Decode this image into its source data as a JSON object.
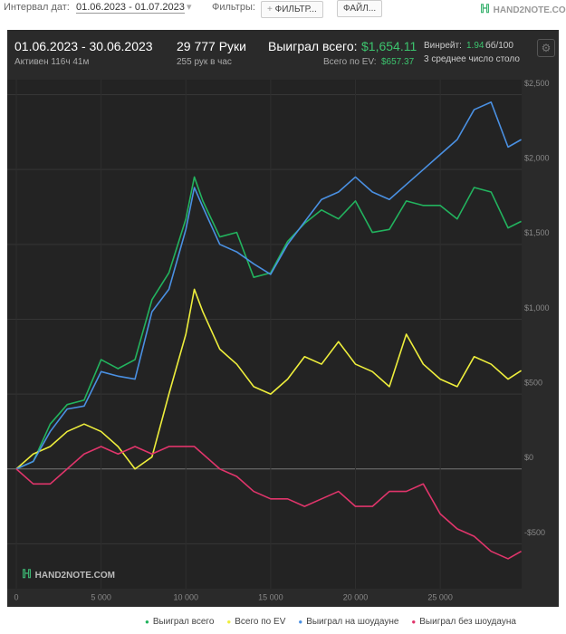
{
  "top_bar": {
    "date_label": "Интервал дат:",
    "date_range": "01.06.2023 - 01.07.2023",
    "filters_label": "Фильтры:",
    "filter_button": "ФИЛЬТР...",
    "file_button": "ФАЙЛ...",
    "logo": "HAND2NOTE.COM"
  },
  "summary": {
    "period": "01.06.2023 - 30.06.2023",
    "active": "Активен 116ч 41м",
    "hands": "29 777 Руки",
    "hands_per_hour": "255 рук в час",
    "won_label": "Выиграл всего:",
    "won_value": "$1,654.11",
    "ev_label": "Всего по EV:",
    "ev_value": "$657.37",
    "winrate_label": "Винрейт:",
    "winrate_value": "1.94",
    "winrate_unit": "бб/100",
    "tables": "3 среднее число столо"
  },
  "chart_data": {
    "type": "line",
    "watermark": "HAND2NOTE.COM",
    "x": [
      0,
      1000,
      2000,
      3000,
      4000,
      5000,
      6000,
      7000,
      8000,
      9000,
      10000,
      10500,
      11000,
      12000,
      13000,
      14000,
      15000,
      16000,
      17000,
      18000,
      19000,
      20000,
      21000,
      22000,
      23000,
      24000,
      25000,
      26000,
      27000,
      28000,
      29000,
      29777
    ],
    "series": [
      {
        "name": "Выиграл всего",
        "color": "#22b35e",
        "values": [
          0,
          50,
          300,
          430,
          460,
          730,
          670,
          730,
          1130,
          1310,
          1670,
          1950,
          1790,
          1550,
          1580,
          1280,
          1310,
          1520,
          1640,
          1730,
          1670,
          1790,
          1580,
          1600,
          1790,
          1760,
          1760,
          1670,
          1880,
          1850,
          1610,
          1654
        ]
      },
      {
        "name": "Всего по EV",
        "color": "#eeee3c",
        "values": [
          0,
          100,
          150,
          250,
          300,
          250,
          150,
          0,
          80,
          500,
          900,
          1200,
          1050,
          800,
          700,
          550,
          500,
          600,
          750,
          700,
          850,
          700,
          650,
          550,
          900,
          700,
          600,
          550,
          750,
          700,
          600,
          657
        ]
      },
      {
        "name": "Выиграл на шоудауне",
        "color": "#4a90e2",
        "values": [
          0,
          50,
          250,
          400,
          420,
          650,
          620,
          600,
          1050,
          1200,
          1600,
          1880,
          1750,
          1500,
          1450,
          1370,
          1300,
          1500,
          1650,
          1800,
          1850,
          1950,
          1850,
          1800,
          1900,
          2000,
          2100,
          2200,
          2400,
          2450,
          2150,
          2200
        ]
      },
      {
        "name": "Выиграл без шоудауна",
        "color": "#e0356b",
        "values": [
          0,
          -100,
          -100,
          0,
          100,
          150,
          100,
          150,
          100,
          150,
          150,
          150,
          100,
          0,
          -50,
          -150,
          -200,
          -200,
          -250,
          -200,
          -150,
          -250,
          -250,
          -150,
          -150,
          -100,
          -300,
          -400,
          -450,
          -550,
          -600,
          -550
        ]
      }
    ],
    "xlim": [
      0,
      29800
    ],
    "ylim": [
      -800,
      2600
    ],
    "xticks": [
      0,
      {
        "value": 5000,
        "label": "5 000"
      },
      {
        "value": 10000,
        "label": "10 000"
      },
      {
        "value": 15000,
        "label": "15 000"
      },
      {
        "value": 20000,
        "label": "20 000"
      },
      {
        "value": 25000,
        "label": "25 000"
      }
    ],
    "yticks": [
      {
        "value": -500,
        "label": "-$500"
      },
      {
        "value": 0,
        "label": "$0"
      },
      {
        "value": 500,
        "label": "$500"
      },
      {
        "value": 1000,
        "label": "$1,000"
      },
      {
        "value": 1500,
        "label": "$1,500"
      },
      {
        "value": 2000,
        "label": "$2,000"
      },
      {
        "value": 2500,
        "label": "$2,500"
      }
    ],
    "grid": true
  }
}
